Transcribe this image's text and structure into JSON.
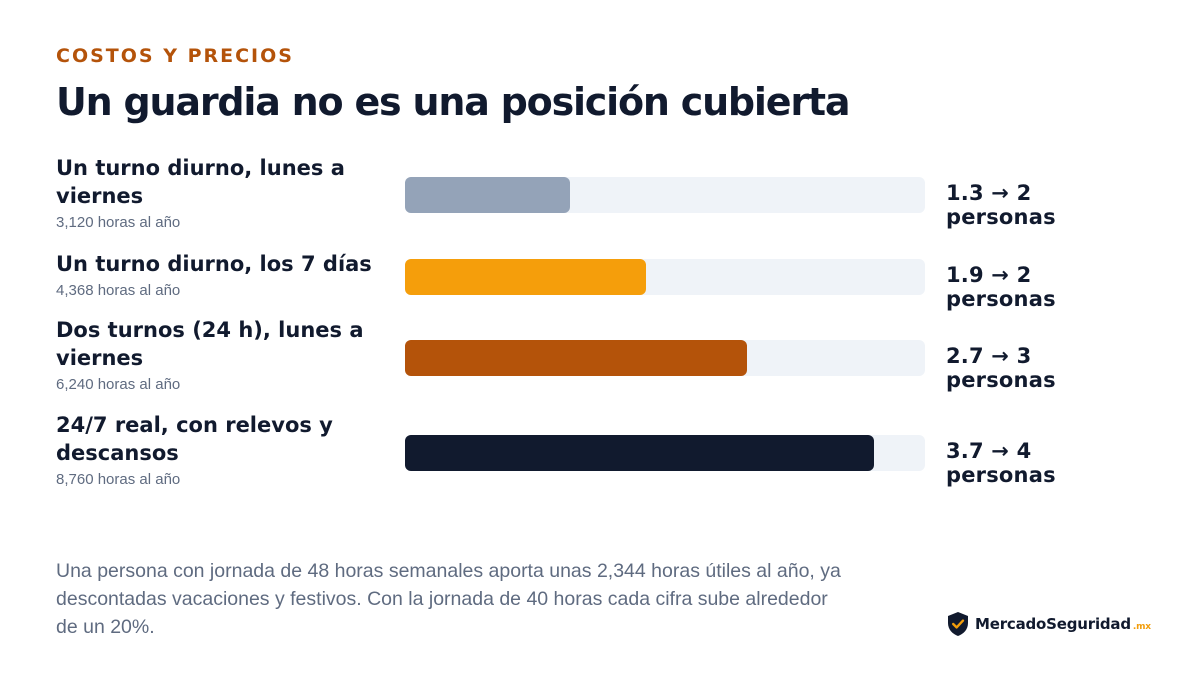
{
  "eyebrow": "COSTOS Y PRECIOS",
  "title": "Un guardia no es una posición cubierta",
  "colors": {
    "accent_orange": "#b4530a",
    "track": "#eff3f8",
    "navy": "#111a2e",
    "muted_text": "#5f6b80",
    "logo_gold": "#f29d0b"
  },
  "chart_data": {
    "type": "bar",
    "orientation": "horizontal",
    "xlim": [
      0,
      4.1
    ],
    "grid": false,
    "rows": [
      {
        "label": "Un turno diurno, lunes a viernes",
        "sub": "3,120 horas al año",
        "value": 1.3,
        "value_text": "1.3 → 2 personas",
        "color": "#94a3b8"
      },
      {
        "label": "Un turno diurno, los 7 días",
        "sub": "4,368 horas al año",
        "value": 1.9,
        "value_text": "1.9 → 2 personas",
        "color": "#f59e0b"
      },
      {
        "label": "Dos turnos (24 h), lunes a viernes",
        "sub": "6,240 horas al año",
        "value": 2.7,
        "value_text": "2.7 → 3 personas",
        "color": "#b4530a"
      },
      {
        "label": "24/7 real, con relevos y descansos",
        "sub": "8,760 horas al año",
        "value": 3.7,
        "value_text": "3.7 → 4 personas",
        "color": "#111a2e"
      }
    ]
  },
  "note": "Una persona con jornada de 48 horas semanales aporta unas 2,344 horas útiles al año, ya descontadas vacaciones y festivos. Con la jornada de 40 horas cada cifra sube alrededor de un 20%.",
  "brand": {
    "icon": "shield-check-icon",
    "part1": "Mercado",
    "part2": "Seguridad",
    "tld": ".mx"
  }
}
